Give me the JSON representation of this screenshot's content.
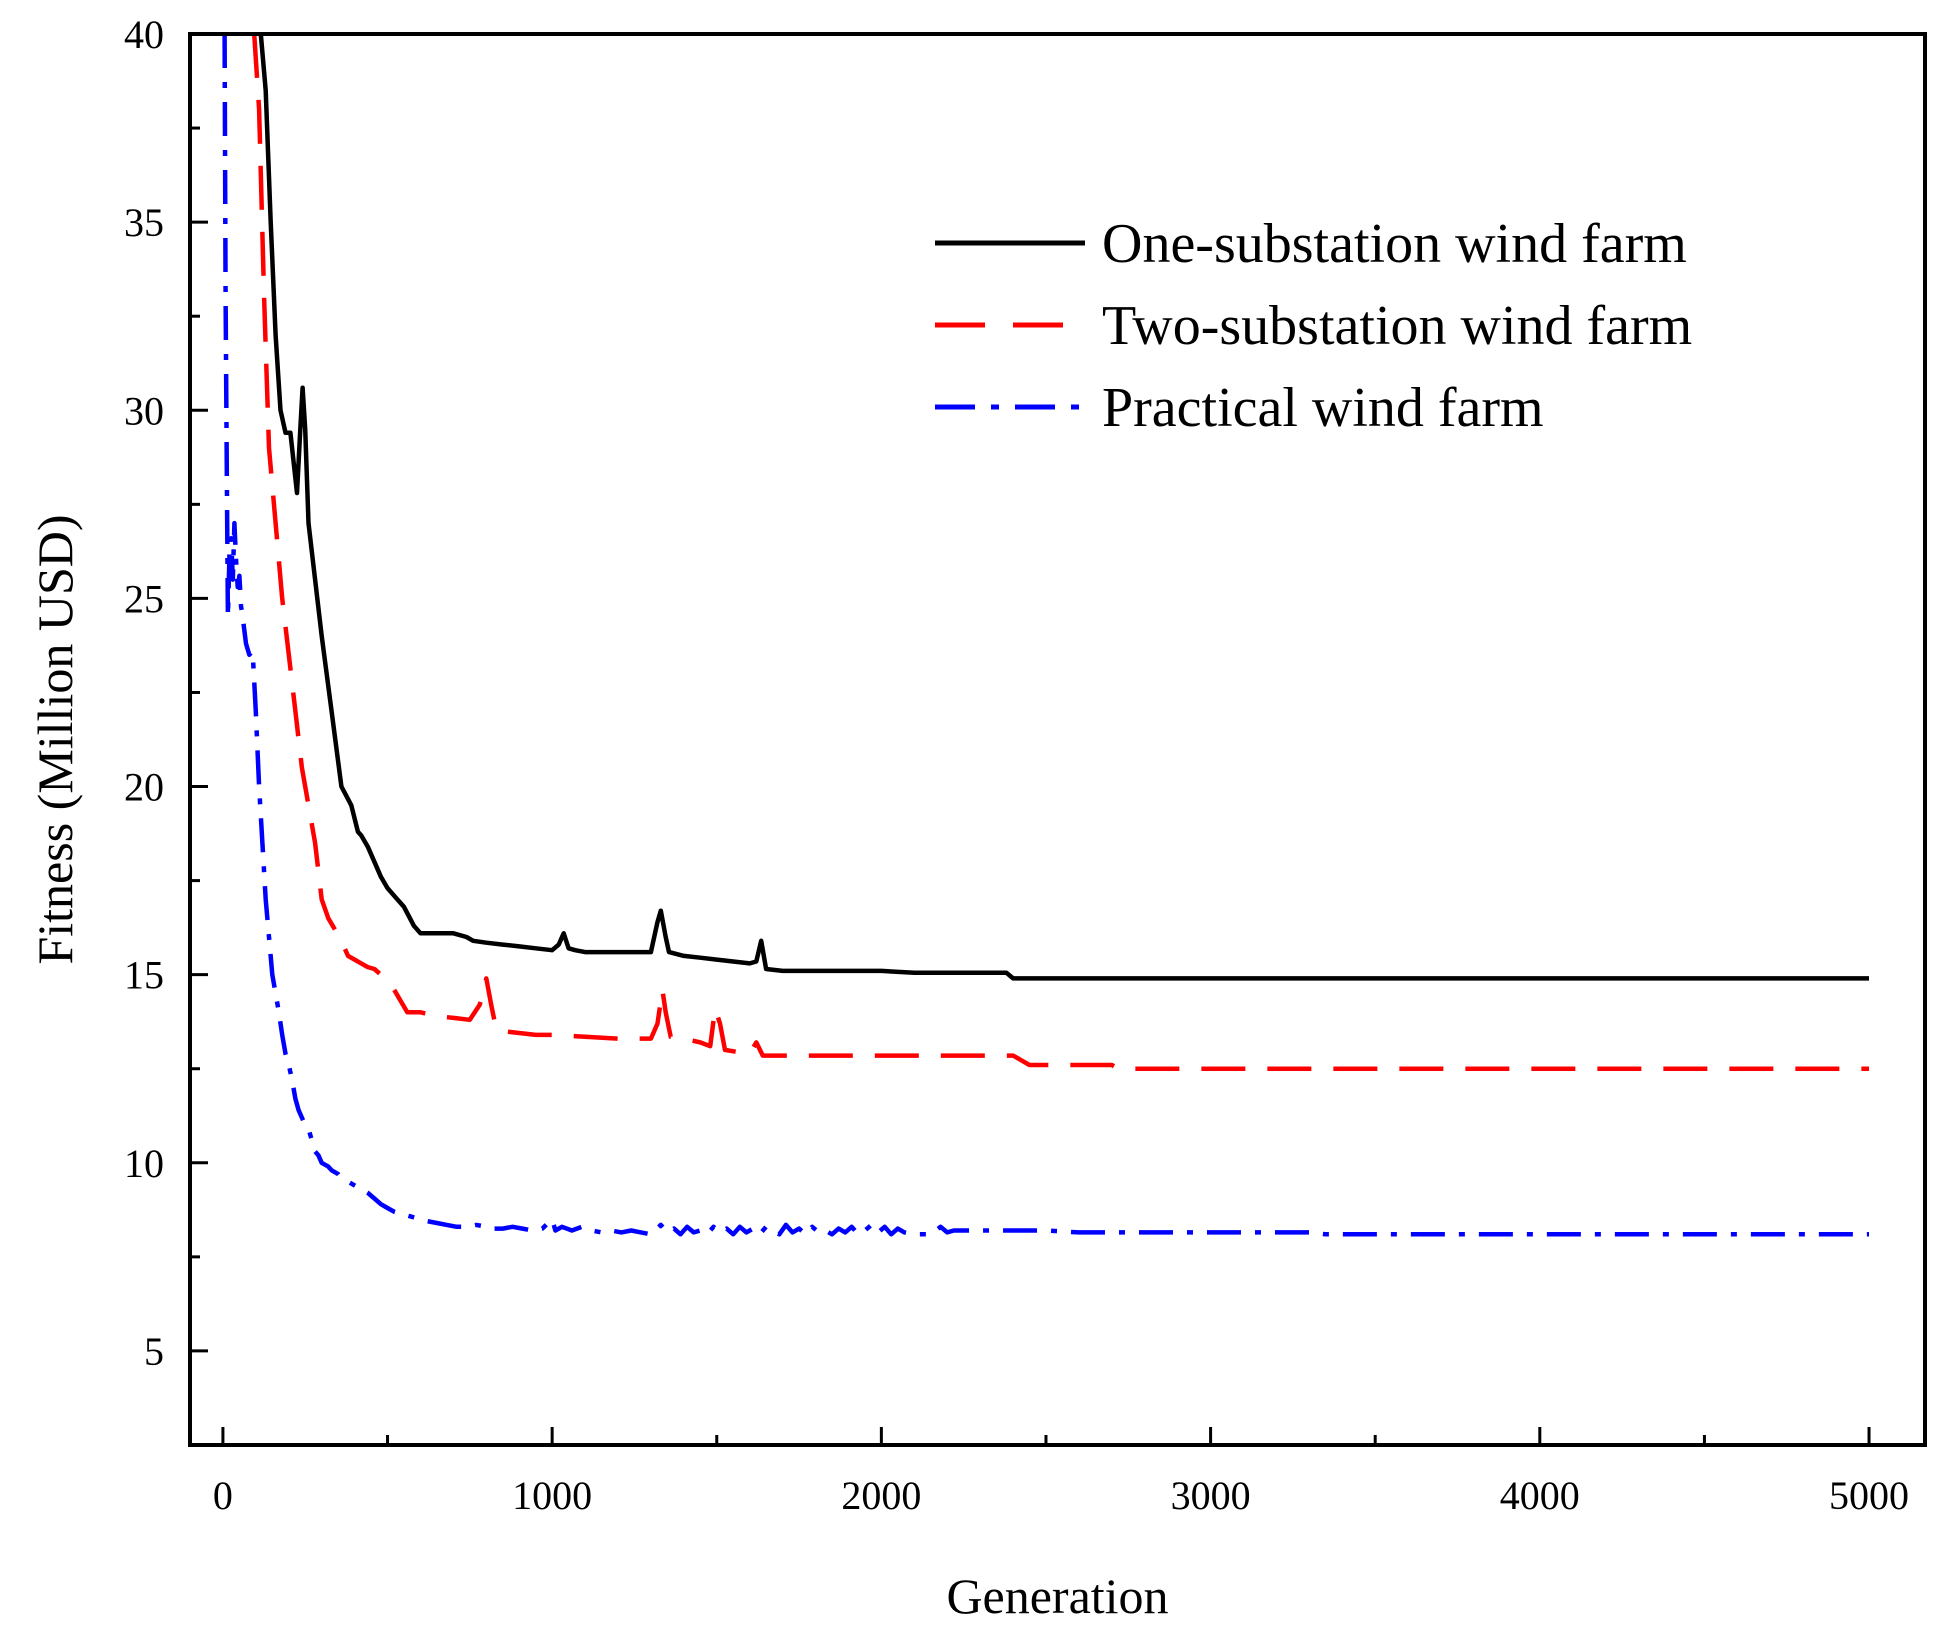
{
  "chart_data": {
    "type": "line",
    "title": "",
    "xlabel": "Generation",
    "ylabel": "Fitness (Million USD)",
    "xlim": [
      -100,
      5170
    ],
    "ylim": [
      2.5,
      40
    ],
    "xticks": [
      0,
      1000,
      2000,
      3000,
      4000,
      5000
    ],
    "yticks": [
      5,
      10,
      15,
      20,
      25,
      30,
      35,
      40
    ],
    "xtick_labels": [
      "0",
      "1000",
      "2000",
      "3000",
      "4000",
      "5000"
    ],
    "ytick_labels": [
      "5",
      "10",
      "15",
      "20",
      "25",
      "30",
      "35",
      "40"
    ],
    "grid": false,
    "legend_position": "top-right",
    "series": [
      {
        "name": "One-substation wind farm",
        "color": "#000000",
        "style": "solid",
        "x": [
          115,
          130,
          145,
          160,
          175,
          190,
          205,
          215,
          225,
          235,
          242,
          250,
          260,
          280,
          300,
          330,
          360,
          390,
          410,
          420,
          440,
          460,
          480,
          500,
          520,
          550,
          580,
          600,
          620,
          650,
          700,
          740,
          760,
          800,
          850,
          900,
          950,
          1000,
          1020,
          1035,
          1050,
          1070,
          1100,
          1150,
          1200,
          1250,
          1300,
          1310,
          1320,
          1330,
          1345,
          1355,
          1400,
          1450,
          1500,
          1550,
          1600,
          1620,
          1635,
          1650,
          1700,
          1800,
          1900,
          2000,
          2100,
          2200,
          2300,
          2380,
          2400,
          2600,
          3000,
          3500,
          4000,
          4500,
          5000
        ],
        "y": [
          40,
          38.5,
          35,
          32,
          30,
          29.4,
          29.4,
          28.6,
          27.8,
          29.5,
          30.6,
          29.5,
          27,
          25.5,
          24,
          22,
          20,
          19.5,
          18.8,
          18.7,
          18.4,
          18,
          17.6,
          17.3,
          17.1,
          16.8,
          16.3,
          16.1,
          16.1,
          16.1,
          16.1,
          16,
          15.9,
          15.85,
          15.8,
          15.75,
          15.7,
          15.65,
          15.8,
          16.1,
          15.7,
          15.65,
          15.6,
          15.6,
          15.6,
          15.6,
          15.6,
          16,
          16.4,
          16.7,
          16,
          15.6,
          15.5,
          15.45,
          15.4,
          15.35,
          15.3,
          15.35,
          15.9,
          15.15,
          15.1,
          15.1,
          15.1,
          15.1,
          15.05,
          15.05,
          15.05,
          15.05,
          14.9,
          14.9,
          14.9,
          14.9,
          14.9,
          14.9,
          14.9
        ]
      },
      {
        "name": "Two-substation wind farm",
        "color": "#ff0000",
        "style": "dashed",
        "x": [
          95,
          110,
          125,
          140,
          160,
          180,
          200,
          220,
          240,
          260,
          280,
          300,
          320,
          340,
          360,
          380,
          400,
          420,
          440,
          460,
          480,
          500,
          520,
          540,
          560,
          600,
          650,
          700,
          750,
          780,
          800,
          815,
          830,
          850,
          900,
          950,
          1000,
          1100,
          1200,
          1250,
          1300,
          1320,
          1335,
          1345,
          1360,
          1400,
          1450,
          1480,
          1495,
          1510,
          1525,
          1560,
          1600,
          1620,
          1640,
          1700,
          1800,
          1900,
          2000,
          2100,
          2200,
          2300,
          2400,
          2420,
          2450,
          2600,
          2700,
          2720,
          3000,
          3500,
          4000,
          4500,
          5000
        ],
        "y": [
          40,
          38,
          33,
          29,
          27,
          25,
          23.5,
          22,
          20.5,
          19.5,
          18.5,
          17,
          16.5,
          16.2,
          15.9,
          15.5,
          15.4,
          15.3,
          15.2,
          15.15,
          15,
          14.8,
          14.6,
          14.3,
          14,
          14,
          13.9,
          13.85,
          13.8,
          14.2,
          14.9,
          14.2,
          13.55,
          13.5,
          13.45,
          13.4,
          13.4,
          13.35,
          13.3,
          13.3,
          13.3,
          13.7,
          14.6,
          14,
          13.35,
          13.3,
          13.2,
          13.1,
          14.1,
          13.7,
          13,
          12.95,
          12.9,
          13.2,
          12.85,
          12.85,
          12.85,
          12.85,
          12.85,
          12.85,
          12.85,
          12.85,
          12.85,
          12.75,
          12.6,
          12.6,
          12.6,
          12.5,
          12.5,
          12.5,
          12.5,
          12.5,
          12.5
        ]
      },
      {
        "name": "Practical wind farm",
        "color": "#0000ff",
        "style": "dashdot",
        "x": [
          5,
          8,
          12,
          15,
          20,
          25,
          30,
          35,
          40,
          45,
          50,
          55,
          60,
          70,
          80,
          90,
          100,
          110,
          120,
          130,
          140,
          150,
          160,
          170,
          180,
          190,
          200,
          210,
          220,
          230,
          240,
          250,
          260,
          270,
          280,
          290,
          300,
          310,
          320,
          330,
          340,
          350,
          360,
          380,
          400,
          420,
          440,
          460,
          480,
          500,
          520,
          540,
          560,
          580,
          600,
          620,
          650,
          680,
          710,
          740,
          770,
          800,
          820,
          850,
          880,
          910,
          940,
          970,
          1000,
          1010,
          1030,
          1060,
          1090,
          1120,
          1150,
          1180,
          1210,
          1240,
          1270,
          1300,
          1330,
          1350,
          1370,
          1390,
          1410,
          1430,
          1450,
          1470,
          1490,
          1510,
          1530,
          1550,
          1570,
          1590,
          1610,
          1630,
          1650,
          1670,
          1690,
          1710,
          1730,
          1750,
          1770,
          1790,
          1810,
          1830,
          1850,
          1870,
          1890,
          1910,
          1930,
          1950,
          1970,
          1990,
          2010,
          2030,
          2050,
          2070,
          2100,
          2150,
          2180,
          2200,
          2220,
          2300,
          2400,
          2500,
          2600,
          2700,
          2800,
          3000,
          3300,
          3350,
          3500,
          4000,
          4500,
          5000
        ],
        "y": [
          40,
          33,
          28,
          24.5,
          26.2,
          26.6,
          25.5,
          27,
          26,
          25.3,
          25.6,
          24.8,
          24.5,
          23.8,
          23.5,
          23.6,
          22,
          20,
          18.5,
          17,
          16,
          15,
          14.5,
          14,
          13.4,
          12.9,
          12.6,
          12.2,
          11.7,
          11.4,
          11.2,
          11,
          10.9,
          10.6,
          10.3,
          10.2,
          10,
          9.95,
          9.9,
          9.8,
          9.75,
          9.7,
          9.6,
          9.5,
          9.4,
          9.3,
          9.2,
          9.05,
          8.9,
          8.8,
          8.7,
          8.65,
          8.6,
          8.55,
          8.5,
          8.45,
          8.4,
          8.35,
          8.3,
          8.3,
          8.35,
          8.3,
          8.25,
          8.25,
          8.3,
          8.25,
          8.2,
          8.25,
          8.5,
          8.2,
          8.3,
          8.2,
          8.3,
          8.2,
          8.15,
          8.2,
          8.15,
          8.2,
          8.15,
          8.1,
          8.35,
          8.15,
          8.25,
          8.1,
          8.3,
          8.15,
          8.2,
          8.1,
          8.3,
          8.15,
          8.25,
          8.1,
          8.3,
          8.15,
          8.25,
          8.1,
          8.3,
          8.2,
          8.1,
          8.35,
          8.15,
          8.25,
          8.1,
          8.3,
          8.15,
          8.2,
          8.1,
          8.25,
          8.15,
          8.3,
          8.1,
          8.2,
          8.35,
          8.15,
          8.3,
          8.1,
          8.25,
          8.15,
          8.1,
          8.1,
          8.3,
          8.15,
          8.2,
          8.2,
          8.2,
          8.2,
          8.15,
          8.15,
          8.15,
          8.15,
          8.15,
          8.1,
          8.1,
          8.1,
          8.1,
          8.1
        ]
      }
    ]
  }
}
